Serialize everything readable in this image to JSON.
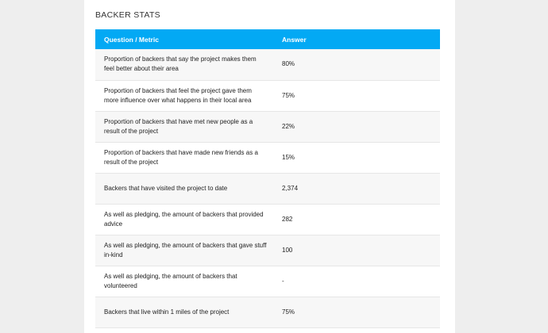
{
  "section": {
    "title": "BACKER STATS"
  },
  "table": {
    "headers": {
      "question": "Question / Metric",
      "answer": "Answer"
    },
    "rows": [
      {
        "question": "Proportion of backers that say the project makes them feel better about their area",
        "answer": "80%"
      },
      {
        "question": "Proportion of backers that feel the project gave them more influence over what happens in their local area",
        "answer": "75%"
      },
      {
        "question": "Proportion of backers that have met new people as a result of the project",
        "answer": "22%"
      },
      {
        "question": "Proportion of backers that have made new friends as a result of the project",
        "answer": "15%"
      },
      {
        "question": "Backers that have visited the project to date",
        "answer": "2,374"
      },
      {
        "question": "As well as pledging, the amount of backers that provided advice",
        "answer": "282"
      },
      {
        "question": "As well as pledging, the amount of backers that gave stuff in-kind",
        "answer": "100"
      },
      {
        "question": "As well as pledging, the amount of backers that volunteered",
        "answer": "-"
      },
      {
        "question": "Backers that live within 1 miles of the project",
        "answer": "75%"
      }
    ]
  },
  "colors": {
    "header_bg": "#03a9f4",
    "page_bg": "#eeeeee",
    "stripe_bg": "#f7f7f7"
  }
}
